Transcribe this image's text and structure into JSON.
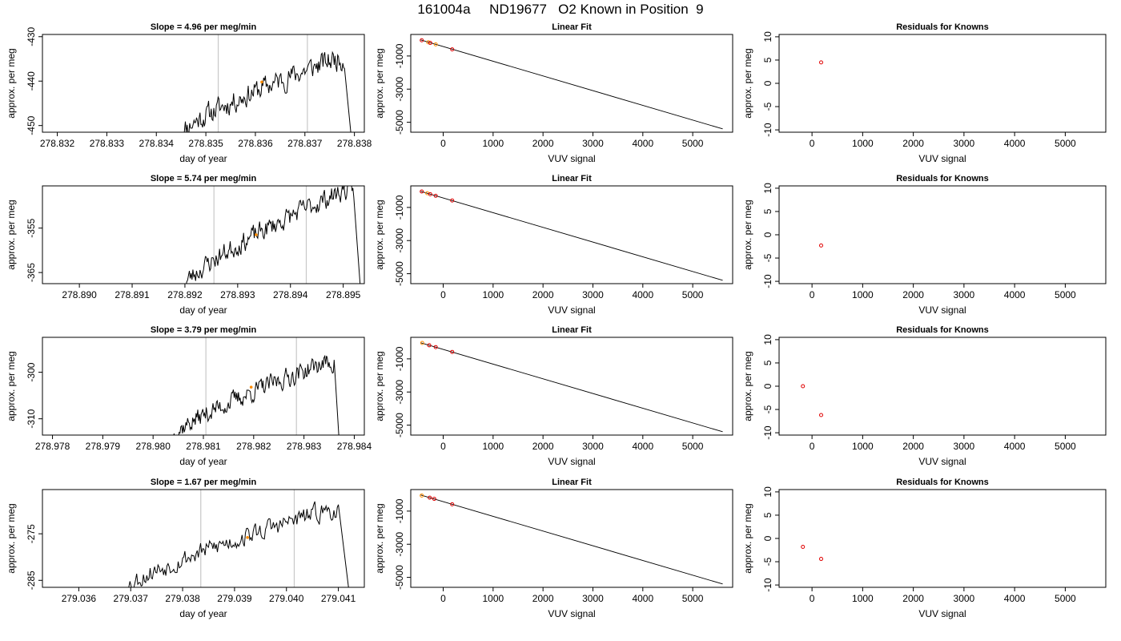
{
  "figure": {
    "title": "161004a     ND19677   O2 Known in Position  9",
    "colors": {
      "line": "#000000",
      "marker_orange": "#ff8c00",
      "marker_red": "#e00000",
      "vline": "#c8c8c8",
      "axis": "#000000"
    }
  },
  "chart_data": [
    {
      "type": "line",
      "row": 1,
      "col": 1,
      "title": "Slope =  4.96  per meg/min",
      "xlabel": "day of year",
      "ylabel": "approx. per meg",
      "xlim": [
        278.8317,
        278.8382
      ],
      "ylim": [
        -451.5,
        -429.5
      ],
      "xticks": [
        278.832,
        278.833,
        278.834,
        278.835,
        278.836,
        278.837,
        278.838
      ],
      "xtick_labels": [
        "278.832",
        "278.833",
        "278.834",
        "278.835",
        "278.836",
        "278.837",
        "278.838"
      ],
      "yticks": [
        -450,
        -440,
        -430
      ],
      "ytick_labels": [
        "-450",
        "-440",
        "-430"
      ],
      "vlines": [
        278.83525,
        278.83705
      ],
      "series": {
        "x_start": 278.8345,
        "x_end": 278.8378,
        "drop_x": 278.83797,
        "start_y": -451.5,
        "end_y": -435,
        "noise": 2.2,
        "seed": 11
      },
      "marker": {
        "x": 278.83613,
        "y": -440.2
      }
    },
    {
      "type": "scatter",
      "row": 1,
      "col": 2,
      "title": "Linear Fit",
      "xlabel": "VUV signal",
      "ylabel": "approx. per meg",
      "xlim": [
        -650,
        5800
      ],
      "ylim": [
        -5600,
        300
      ],
      "xticks": [
        0,
        1000,
        2000,
        3000,
        4000,
        5000
      ],
      "xtick_labels": [
        "0",
        "1000",
        "2000",
        "3000",
        "4000",
        "5000"
      ],
      "yticks": [
        -5000,
        -3000,
        -1000
      ],
      "ytick_labels": [
        "-5000",
        "-3000",
        "-1000"
      ],
      "fit_line": {
        "x": [
          -450,
          5600
        ],
        "y": [
          -30,
          -5400
        ]
      },
      "points": [
        {
          "x": -430,
          "y": -50,
          "color": "red"
        },
        {
          "x": -300,
          "y": -170,
          "color": "orange"
        },
        {
          "x": -260,
          "y": -210,
          "color": "red"
        },
        {
          "x": -150,
          "y": -300,
          "color": "orange"
        },
        {
          "x": 180,
          "y": -600,
          "color": "red"
        }
      ]
    },
    {
      "type": "scatter",
      "row": 1,
      "col": 3,
      "title": "Residuals for Knowns",
      "xlabel": "VUV signal",
      "ylabel": "approx. per meg",
      "xlim": [
        -650,
        5800
      ],
      "ylim": [
        -10.5,
        10.5
      ],
      "xticks": [
        0,
        1000,
        2000,
        3000,
        4000,
        5000
      ],
      "xtick_labels": [
        "0",
        "1000",
        "2000",
        "3000",
        "4000",
        "5000"
      ],
      "yticks": [
        -10,
        -5,
        0,
        5,
        10
      ],
      "ytick_labels": [
        "-10",
        "-5",
        "0",
        "5",
        "10"
      ],
      "points": [
        {
          "x": 180,
          "y": 4.5,
          "color": "red"
        }
      ]
    },
    {
      "type": "line",
      "row": 2,
      "col": 1,
      "title": "Slope =  5.74  per meg/min",
      "xlabel": "day of year",
      "ylabel": "approx. per meg",
      "xlim": [
        278.8893,
        278.8954
      ],
      "ylim": [
        -367.5,
        -345.5
      ],
      "xticks": [
        278.89,
        278.891,
        278.892,
        278.893,
        278.894,
        278.895
      ],
      "xtick_labels": [
        "278.890",
        "278.891",
        "278.892",
        "278.893",
        "278.894",
        "278.895"
      ],
      "yticks": [
        -365,
        -355
      ],
      "ytick_labels": [
        "-365",
        "-355"
      ],
      "vlines": [
        278.89255,
        278.8943
      ],
      "series": {
        "x_start": 278.892,
        "x_end": 278.8952,
        "drop_x": 278.89535,
        "start_y": -367.5,
        "end_y": -346.5,
        "noise": 2.0,
        "seed": 23
      },
      "marker": {
        "x": 278.89335,
        "y": -356.5
      }
    },
    {
      "type": "scatter",
      "row": 2,
      "col": 2,
      "title": "Linear Fit",
      "xlabel": "VUV signal",
      "ylabel": "approx. per meg",
      "xlim": [
        -650,
        5800
      ],
      "ylim": [
        -5600,
        300
      ],
      "xticks": [
        0,
        1000,
        2000,
        3000,
        4000,
        5000
      ],
      "xtick_labels": [
        "0",
        "1000",
        "2000",
        "3000",
        "4000",
        "5000"
      ],
      "yticks": [
        -5000,
        -3000,
        -1000
      ],
      "ytick_labels": [
        "-5000",
        "-3000",
        "-1000"
      ],
      "fit_line": {
        "x": [
          -450,
          5600
        ],
        "y": [
          -30,
          -5400
        ]
      },
      "points": [
        {
          "x": -430,
          "y": -40,
          "color": "red"
        },
        {
          "x": -320,
          "y": -140,
          "color": "orange"
        },
        {
          "x": -260,
          "y": -200,
          "color": "red"
        },
        {
          "x": -150,
          "y": -300,
          "color": "red"
        },
        {
          "x": 180,
          "y": -580,
          "color": "red"
        }
      ]
    },
    {
      "type": "scatter",
      "row": 2,
      "col": 3,
      "title": "Residuals for Knowns",
      "xlabel": "VUV signal",
      "ylabel": "approx. per meg",
      "xlim": [
        -650,
        5800
      ],
      "ylim": [
        -10.5,
        10.5
      ],
      "xticks": [
        0,
        1000,
        2000,
        3000,
        4000,
        5000
      ],
      "xtick_labels": [
        "0",
        "1000",
        "2000",
        "3000",
        "4000",
        "5000"
      ],
      "yticks": [
        -10,
        -5,
        0,
        5,
        10
      ],
      "ytick_labels": [
        "-10",
        "-5",
        "0",
        "5",
        "10"
      ],
      "points": [
        {
          "x": 180,
          "y": -2.3,
          "color": "red"
        }
      ]
    },
    {
      "type": "line",
      "row": 3,
      "col": 1,
      "title": "Slope =  3.79  per meg/min",
      "xlabel": "day of year",
      "ylabel": "approx. per meg",
      "xlim": [
        278.9778,
        278.9842
      ],
      "ylim": [
        -313.5,
        -292.5
      ],
      "xticks": [
        278.978,
        278.979,
        278.98,
        278.981,
        278.982,
        278.983,
        278.984
      ],
      "xtick_labels": [
        "278.978",
        "278.979",
        "278.980",
        "278.981",
        "278.982",
        "278.983",
        "278.984"
      ],
      "yticks": [
        -310,
        -300
      ],
      "ytick_labels": [
        "-310",
        "-300"
      ],
      "vlines": [
        278.98105,
        278.98285
      ],
      "series": {
        "x_start": 278.9804,
        "x_end": 278.9836,
        "drop_x": 278.98372,
        "start_y": -313.5,
        "end_y": -298,
        "noise": 1.8,
        "seed": 37
      },
      "marker": {
        "x": 278.98195,
        "y": -303.2
      }
    },
    {
      "type": "scatter",
      "row": 3,
      "col": 2,
      "title": "Linear Fit",
      "xlabel": "VUV signal",
      "ylabel": "approx. per meg",
      "xlim": [
        -650,
        5800
      ],
      "ylim": [
        -5600,
        300
      ],
      "xticks": [
        0,
        1000,
        2000,
        3000,
        4000,
        5000
      ],
      "xtick_labels": [
        "0",
        "1000",
        "2000",
        "3000",
        "4000",
        "5000"
      ],
      "yticks": [
        -5000,
        -3000,
        -1000
      ],
      "ytick_labels": [
        "-5000",
        "-3000",
        "-1000"
      ],
      "fit_line": {
        "x": [
          -450,
          5600
        ],
        "y": [
          -30,
          -5400
        ]
      },
      "points": [
        {
          "x": -420,
          "y": -40,
          "color": "orange"
        },
        {
          "x": -280,
          "y": -180,
          "color": "red"
        },
        {
          "x": -150,
          "y": -290,
          "color": "red"
        },
        {
          "x": 180,
          "y": -580,
          "color": "red"
        }
      ]
    },
    {
      "type": "scatter",
      "row": 3,
      "col": 3,
      "title": "Residuals for Knowns",
      "xlabel": "VUV signal",
      "ylabel": "approx. per meg",
      "xlim": [
        -650,
        5800
      ],
      "ylim": [
        -10.5,
        10.5
      ],
      "xticks": [
        0,
        1000,
        2000,
        3000,
        4000,
        5000
      ],
      "xtick_labels": [
        "0",
        "1000",
        "2000",
        "3000",
        "4000",
        "5000"
      ],
      "yticks": [
        -10,
        -5,
        0,
        5,
        10
      ],
      "ytick_labels": [
        "-10",
        "-5",
        "0",
        "5",
        "10"
      ],
      "points": [
        {
          "x": -180,
          "y": 0,
          "color": "red"
        },
        {
          "x": 180,
          "y": -6.2,
          "color": "red"
        }
      ]
    },
    {
      "type": "line",
      "row": 4,
      "col": 1,
      "title": "Slope =  1.67  per meg/min",
      "xlabel": "day of year",
      "ylabel": "approx. per meg",
      "xlim": [
        279.0353,
        279.0415
      ],
      "ylim": [
        -286.5,
        -265.5
      ],
      "xticks": [
        279.036,
        279.037,
        279.038,
        279.039,
        279.04,
        279.041
      ],
      "xtick_labels": [
        "279.036",
        "279.037",
        "279.038",
        "279.039",
        "279.040",
        "279.041"
      ],
      "yticks": [
        -285,
        -275
      ],
      "ytick_labels": [
        "-285",
        "-275"
      ],
      "vlines": [
        279.03835,
        279.04015
      ],
      "series": {
        "x_start": 279.0369,
        "x_end": 279.041,
        "drop_x": 279.04125,
        "start_y": -286.5,
        "end_y": -270,
        "noise": 1.8,
        "seed": 53
      },
      "marker": {
        "x": 279.03925,
        "y": -275.8
      }
    },
    {
      "type": "scatter",
      "row": 4,
      "col": 2,
      "title": "Linear Fit",
      "xlabel": "VUV signal",
      "ylabel": "approx. per meg",
      "xlim": [
        -650,
        5800
      ],
      "ylim": [
        -5600,
        300
      ],
      "xticks": [
        0,
        1000,
        2000,
        3000,
        4000,
        5000
      ],
      "xtick_labels": [
        "0",
        "1000",
        "2000",
        "3000",
        "4000",
        "5000"
      ],
      "yticks": [
        -5000,
        -3000,
        -1000
      ],
      "ytick_labels": [
        "-5000",
        "-3000",
        "-1000"
      ],
      "fit_line": {
        "x": [
          -450,
          5600
        ],
        "y": [
          -30,
          -5400
        ]
      },
      "points": [
        {
          "x": -430,
          "y": -60,
          "color": "orange"
        },
        {
          "x": -270,
          "y": -190,
          "color": "red"
        },
        {
          "x": -180,
          "y": -260,
          "color": "red"
        },
        {
          "x": 180,
          "y": -590,
          "color": "red"
        }
      ]
    },
    {
      "type": "scatter",
      "row": 4,
      "col": 3,
      "title": "Residuals for Knowns",
      "xlabel": "VUV signal",
      "ylabel": "approx. per meg",
      "xlim": [
        -650,
        5800
      ],
      "ylim": [
        -10.5,
        10.5
      ],
      "xticks": [
        0,
        1000,
        2000,
        3000,
        4000,
        5000
      ],
      "xtick_labels": [
        "0",
        "1000",
        "2000",
        "3000",
        "4000",
        "5000"
      ],
      "yticks": [
        -10,
        -5,
        0,
        5,
        10
      ],
      "ytick_labels": [
        "-10",
        "-5",
        "0",
        "5",
        "10"
      ],
      "points": [
        {
          "x": -180,
          "y": -1.8,
          "color": "red"
        },
        {
          "x": 180,
          "y": -4.4,
          "color": "red"
        }
      ]
    }
  ]
}
